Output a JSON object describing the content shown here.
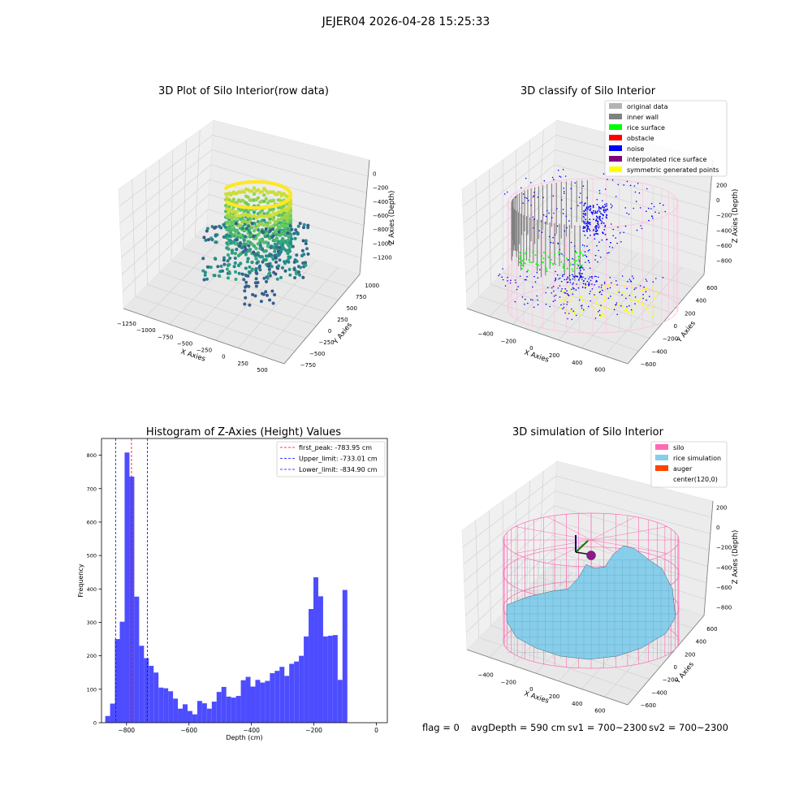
{
  "suptitle": "JEJER04 2026-04-28 15:25:33",
  "footer": {
    "flag": "flag = 0",
    "avg": "avgDepth = 590 cm",
    "sv1": "sv1 = 700~2300",
    "sv2": "sv2 = 700~2300"
  },
  "colors": {
    "hist_bar": "#4d4dff",
    "peak_line": "#ff0000",
    "limit_line": "#0000ff",
    "silo": "#ff69b4",
    "rice_sim": "#87ceeb",
    "auger": "#ff4500",
    "original": "#b3b3b3",
    "inner_wall": "#808080",
    "rice_surface": "#00ff00",
    "obstacle": "#ff0000",
    "noise": "#0000ff",
    "interp": "#800080",
    "symmetric": "#ffff00"
  },
  "chart_data": [
    {
      "type": "scatter",
      "subtype": "3d",
      "title": "3D Plot of Silo Interior(row data)",
      "xlabel": "X Axies",
      "ylabel": "Y Axies",
      "zlabel": "Z Axies (Depth)",
      "x_ticks": [
        "−1250",
        "−1000",
        "−750",
        "−500",
        "−250",
        "0",
        "250",
        "500"
      ],
      "y_ticks": [
        "−750",
        "−500",
        "−250",
        "0",
        "250",
        "500",
        "750",
        "1000"
      ],
      "z_ticks": [
        "0",
        "−200",
        "−400",
        "−600",
        "−800",
        "−1000",
        "−1200"
      ],
      "colormap": "viridis",
      "grid": true
    },
    {
      "type": "scatter",
      "subtype": "3d",
      "title": "3D classify of Silo Interior",
      "xlabel": "X Axies",
      "ylabel": "Y Axies",
      "zlabel": "Z Axies (Depth)",
      "x_ticks": [
        "−400",
        "−200",
        "0",
        "200",
        "400",
        "600"
      ],
      "y_ticks": [
        "−600",
        "−400",
        "−200",
        "0",
        "200",
        "400",
        "600"
      ],
      "z_ticks": [
        "200",
        "0",
        "−200",
        "−400",
        "−600",
        "−800"
      ],
      "legend": [
        {
          "name": "original data",
          "color": "#b3b3b3"
        },
        {
          "name": "inner wall",
          "color": "#808080"
        },
        {
          "name": "rice surface",
          "color": "#00ff00"
        },
        {
          "name": "obstacle",
          "color": "#ff0000"
        },
        {
          "name": "noise",
          "color": "#0000ff"
        },
        {
          "name": "interpolated rice surface",
          "color": "#800080"
        },
        {
          "name": "symmetric generated points",
          "color": "#ffff00"
        }
      ],
      "legend_position": "top-right",
      "grid": true
    },
    {
      "type": "bar",
      "subtype": "histogram",
      "title": "Histogram of Z-Axies (Height) Values",
      "xlabel": "Depth (cm)",
      "ylabel": "Frequency",
      "xlim": [
        -880,
        35
      ],
      "ylim": [
        0,
        850
      ],
      "x_ticks": [
        -800,
        -600,
        -400,
        -200,
        0
      ],
      "y_ticks": [
        0,
        100,
        200,
        300,
        400,
        500,
        600,
        700,
        800
      ],
      "bin_start": -868,
      "bin_width": 15.5,
      "values": [
        20,
        57,
        250,
        302,
        808,
        736,
        377,
        230,
        193,
        170,
        150,
        105,
        103,
        94,
        72,
        42,
        55,
        35,
        25,
        65,
        58,
        42,
        63,
        92,
        107,
        78,
        75,
        80,
        127,
        137,
        108,
        128,
        120,
        125,
        148,
        155,
        167,
        140,
        176,
        183,
        200,
        258,
        340,
        435,
        378,
        258,
        260,
        262,
        128,
        397
      ],
      "vlines": [
        {
          "name": "first_peak: -783.95 cm",
          "x": -783.95,
          "color": "#ff0000"
        },
        {
          "name": "Upper_limit: -733.01 cm",
          "x": -733.01,
          "color": "#0000ff"
        },
        {
          "name": "Lower_limit: -834.90 cm",
          "x": -834.9,
          "color": "#0000ff"
        }
      ],
      "legend_position": "top-right",
      "grid": false
    },
    {
      "type": "area",
      "subtype": "3d-surface",
      "title": "3D simulation of Silo Interior",
      "xlabel": "X Axies",
      "ylabel": "Y Axies",
      "zlabel": "Z Axies (Depth)",
      "x_ticks": [
        "−400",
        "−200",
        "0",
        "200",
        "400",
        "600"
      ],
      "y_ticks": [
        "−600",
        "−400",
        "−200",
        "0",
        "200",
        "400",
        "600"
      ],
      "z_ticks": [
        "200",
        "0",
        "−200",
        "−400",
        "−600",
        "−800"
      ],
      "legend": [
        {
          "name": "silo",
          "color": "#ff69b4"
        },
        {
          "name": "rice simulation",
          "color": "#87ceeb"
        },
        {
          "name": "auger",
          "color": "#ff4500"
        },
        {
          "name": "center(120,0)",
          "color": ""
        }
      ],
      "legend_position": "top-right",
      "grid": true
    }
  ]
}
